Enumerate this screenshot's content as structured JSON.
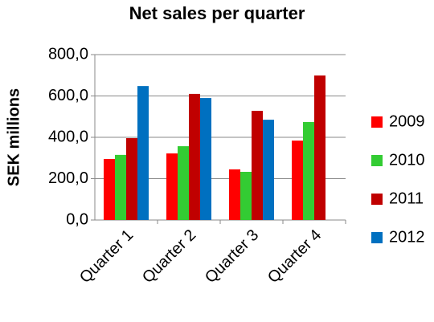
{
  "chart_data": {
    "type": "bar",
    "title": "Net sales per quarter",
    "y_label": "SEK millions",
    "categories": [
      "Quarter 1",
      "Quarter 2",
      "Quarter 3",
      "Quarter 4"
    ],
    "series": [
      {
        "name": "2009",
        "color": "#ff0000",
        "values": [
          295,
          322,
          245,
          384
        ]
      },
      {
        "name": "2010",
        "color": "#33cc33",
        "values": [
          315,
          357,
          233,
          474
        ]
      },
      {
        "name": "2011",
        "color": "#c00000",
        "values": [
          396,
          610,
          528,
          699
        ]
      },
      {
        "name": "2012",
        "color": "#0070c0",
        "values": [
          648,
          590,
          485,
          null
        ]
      }
    ],
    "ylim": [
      0,
      800
    ],
    "yticks": [
      {
        "value": 0,
        "label": "0,0"
      },
      {
        "value": 200,
        "label": "200,0"
      },
      {
        "value": 400,
        "label": "400,0"
      },
      {
        "value": 600,
        "label": "600,0"
      },
      {
        "value": 800,
        "label": "800,0"
      }
    ],
    "grid": true,
    "legend": "right"
  }
}
